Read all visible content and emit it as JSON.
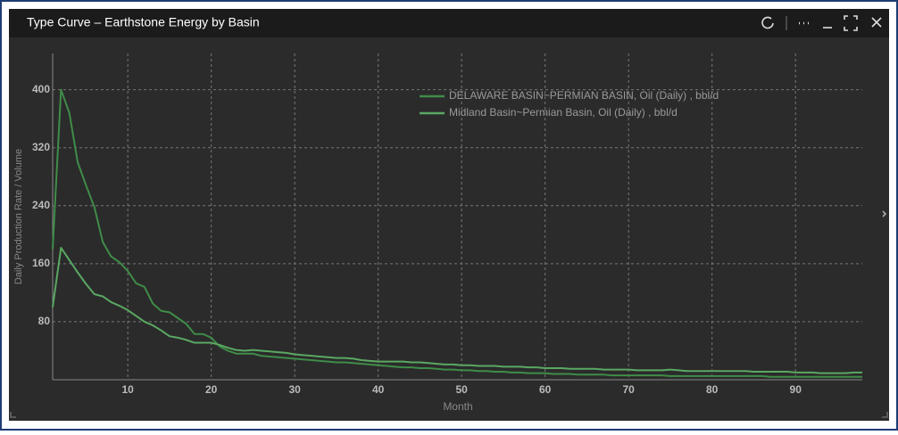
{
  "chart_data": {
    "type": "line",
    "title": "Type Curve – Earthstone  Energy by Basin",
    "x_label": "Month",
    "y_label": "Daily Production Rate / Volume",
    "x": [
      1,
      2,
      3,
      4,
      5,
      6,
      7,
      8,
      9,
      10,
      11,
      12,
      13,
      14,
      15,
      16,
      17,
      18,
      19,
      20,
      21,
      22,
      23,
      24,
      25,
      26,
      27,
      28,
      29,
      30,
      31,
      32,
      33,
      34,
      35,
      36,
      37,
      38,
      39,
      40,
      41,
      42,
      43,
      44,
      45,
      46,
      47,
      48,
      49,
      50,
      51,
      52,
      53,
      54,
      55,
      56,
      57,
      58,
      59,
      60,
      61,
      62,
      63,
      64,
      65,
      66,
      67,
      68,
      69,
      70,
      71,
      72,
      73,
      74,
      75,
      76,
      77,
      78,
      79,
      80,
      81,
      82,
      83,
      84,
      85,
      86,
      87,
      88,
      89,
      90,
      91,
      92,
      93,
      94,
      95,
      96,
      97,
      98
    ],
    "series": [
      {
        "name": "DELAWARE BASIN~PERMIAN BASIN, Oil (Daily) , bbl/d",
        "color": "#3f8c48",
        "values": [
          180,
          400,
          368,
          300,
          268,
          238,
          190,
          170,
          162,
          150,
          133,
          128,
          105,
          95,
          93,
          85,
          77,
          63,
          63,
          58,
          46,
          40,
          36,
          36,
          36,
          33,
          32,
          31,
          30,
          29,
          28,
          27,
          26,
          25,
          24,
          24,
          23,
          22,
          21,
          20,
          19,
          18,
          17,
          17,
          16,
          16,
          15,
          14,
          14,
          13,
          13,
          12,
          12,
          11,
          11,
          10,
          10,
          9,
          9,
          9,
          8,
          8,
          8,
          7,
          7,
          7,
          7,
          6,
          6,
          6,
          6,
          6,
          6,
          6,
          5,
          5,
          5,
          5,
          5,
          5,
          5,
          5,
          5,
          5,
          5,
          5,
          4,
          4,
          4,
          4,
          4,
          4,
          4,
          4,
          4,
          4,
          4,
          4
        ]
      },
      {
        "name": "Midland Basin~Permian Basin, Oil (Daily) , bbl/d",
        "color": "#5aa862",
        "values": [
          100,
          182,
          165,
          148,
          132,
          118,
          115,
          107,
          102,
          96,
          88,
          80,
          75,
          68,
          60,
          58,
          55,
          51,
          51,
          51,
          48,
          44,
          41,
          40,
          41,
          40,
          39,
          38,
          37,
          35,
          34,
          33,
          32,
          31,
          30,
          30,
          29,
          27,
          26,
          25,
          25,
          25,
          25,
          24,
          24,
          23,
          22,
          21,
          21,
          20,
          20,
          19,
          19,
          19,
          18,
          18,
          18,
          17,
          17,
          16,
          16,
          16,
          15,
          15,
          15,
          15,
          14,
          14,
          14,
          14,
          13,
          13,
          13,
          13,
          14,
          13,
          12,
          12,
          12,
          12,
          12,
          12,
          12,
          12,
          11,
          11,
          11,
          11,
          11,
          10,
          10,
          10,
          9,
          9,
          9,
          9,
          10,
          10
        ]
      }
    ],
    "xlim": [
      1,
      98
    ],
    "ylim": [
      0,
      450
    ],
    "xticks": [
      10,
      20,
      30,
      40,
      50,
      60,
      70,
      80,
      90
    ],
    "yticks": [
      80,
      160,
      240,
      320,
      400
    ],
    "grid": true,
    "legend": "top"
  }
}
